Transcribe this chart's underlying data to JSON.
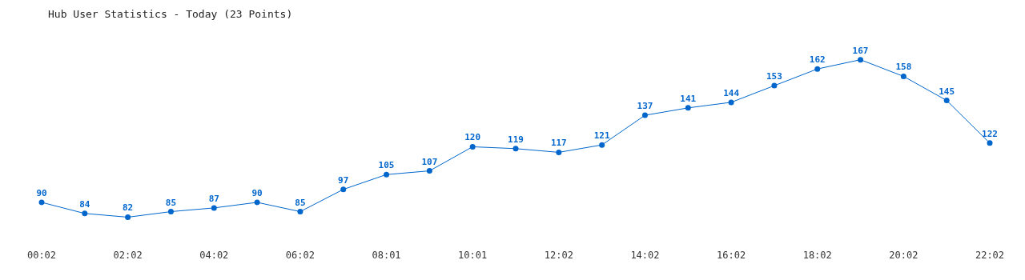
{
  "chart_data": {
    "type": "line",
    "title": "Hub User Statistics - Today (23 Points)",
    "categories": [
      "00:02",
      null,
      "02:02",
      null,
      "04:02",
      null,
      "06:02",
      null,
      "08:01",
      null,
      "10:01",
      null,
      "12:02",
      null,
      "14:02",
      null,
      "16:02",
      null,
      "18:02",
      null,
      "20:02",
      null,
      "22:02"
    ],
    "series": [
      {
        "color": "#0066cc",
        "values": [
          90,
          84,
          82,
          85,
          87,
          90,
          85,
          97,
          105,
          107,
          120,
          119,
          117,
          121,
          137,
          141,
          144,
          153,
          162,
          167,
          158,
          145,
          122
        ]
      }
    ],
    "marker": "circle",
    "data_labels": true,
    "grid": false,
    "legend": false
  }
}
